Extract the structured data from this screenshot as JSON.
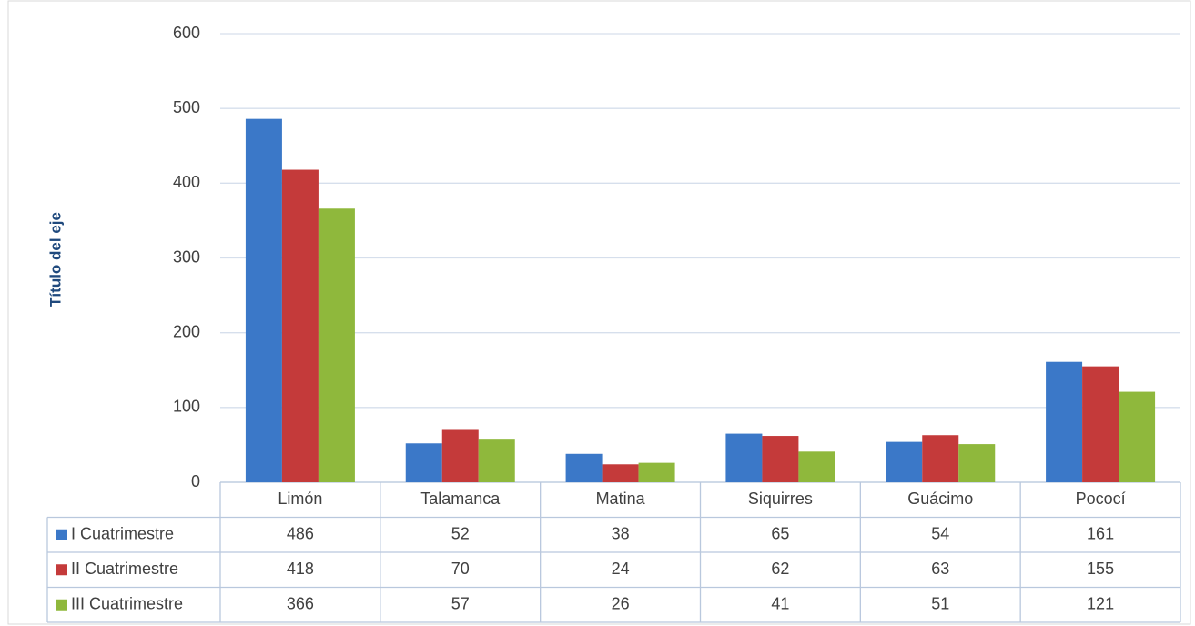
{
  "chart_data": {
    "type": "bar",
    "y_label": "Título del eje",
    "categories": [
      "Limón",
      "Talamanca",
      "Matina",
      "Siquirres",
      "Guácimo",
      "Pococí"
    ],
    "series": [
      {
        "name": "I Cuatrimestre",
        "color": "#3b78c8",
        "values": [
          486,
          52,
          38,
          65,
          54,
          161
        ]
      },
      {
        "name": "II Cuatrimestre",
        "color": "#c43a3a",
        "values": [
          418,
          70,
          24,
          62,
          63,
          155
        ]
      },
      {
        "name": "III Cuatrimestre",
        "color": "#8fb83c",
        "values": [
          366,
          57,
          26,
          41,
          51,
          121
        ]
      }
    ],
    "ylim": [
      0,
      600
    ],
    "yticks": [
      0,
      100,
      200,
      300,
      400,
      500,
      600
    ],
    "grid": true
  }
}
